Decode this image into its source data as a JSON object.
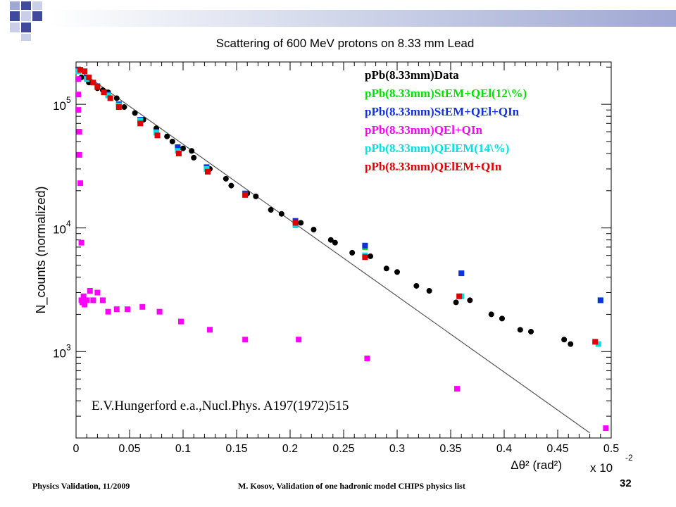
{
  "slide": {
    "footer_left": "Physics Validation, 11/2009",
    "footer_center": "M. Kosov,  Validation of one hadronic model CHIPS physics list",
    "page_number": "32"
  },
  "chart_data": {
    "type": "scatter",
    "title": "Scattering of 600 MeV protons on 8.33 mm Lead",
    "xlabel": "Δθ² (rad²)",
    "x_multiplier": "x 10",
    "x_multiplier_exp": "-2",
    "ylabel": "N_counts (normalized)",
    "xlim": [
      0,
      0.5
    ],
    "ylim": [
      200,
      220000
    ],
    "yscale": "log",
    "x_ticks": [
      "0",
      "0.05",
      "0.1",
      "0.15",
      "0.2",
      "0.25",
      "0.3",
      "0.35",
      "0.4",
      "0.45",
      "0.5"
    ],
    "x_tick_values": [
      0,
      0.05,
      0.1,
      0.15,
      0.2,
      0.25,
      0.3,
      0.35,
      0.4,
      0.45,
      0.5
    ],
    "y_ticks": [
      {
        "value": 1000,
        "base": "10",
        "exp": "3"
      },
      {
        "value": 10000,
        "base": "10",
        "exp": "4"
      },
      {
        "value": 100000,
        "base": "10",
        "exp": "5"
      }
    ],
    "annotation": "E.V.Hungerford e.a.,Nucl.Phys. A197(1972)515",
    "legend_position": "top-right",
    "reference_line": {
      "points": [
        [
          0.002,
          190000
        ],
        [
          0.48,
          220
        ]
      ],
      "color": "#555555"
    },
    "series": [
      {
        "name": "pPb(8.33mm)Data",
        "color": "#000000",
        "marker": "circle",
        "points": [
          [
            0.002,
            160000
          ],
          [
            0.005,
            165000
          ],
          [
            0.012,
            150000
          ],
          [
            0.02,
            135000
          ],
          [
            0.025,
            130000
          ],
          [
            0.03,
            125000
          ],
          [
            0.038,
            112000
          ],
          [
            0.045,
            95000
          ],
          [
            0.055,
            85000
          ],
          [
            0.063,
            75000
          ],
          [
            0.075,
            64000
          ],
          [
            0.085,
            55000
          ],
          [
            0.09,
            50000
          ],
          [
            0.1,
            44000
          ],
          [
            0.108,
            42000
          ],
          [
            0.11,
            37000
          ],
          [
            0.125,
            30000
          ],
          [
            0.14,
            25000
          ],
          [
            0.145,
            22000
          ],
          [
            0.16,
            19000
          ],
          [
            0.168,
            18000
          ],
          [
            0.182,
            14000
          ],
          [
            0.192,
            13000
          ],
          [
            0.21,
            11000
          ],
          [
            0.222,
            9700
          ],
          [
            0.238,
            8000
          ],
          [
            0.242,
            7600
          ],
          [
            0.258,
            6300
          ],
          [
            0.275,
            5900
          ],
          [
            0.29,
            4700
          ],
          [
            0.3,
            4400
          ],
          [
            0.318,
            3400
          ],
          [
            0.33,
            3100
          ],
          [
            0.355,
            2500
          ],
          [
            0.368,
            2600
          ],
          [
            0.388,
            2000
          ],
          [
            0.398,
            1850
          ],
          [
            0.415,
            1500
          ],
          [
            0.425,
            1450
          ],
          [
            0.456,
            1250
          ],
          [
            0.462,
            1150
          ]
        ]
      },
      {
        "name": "pPb(8.33mm)StEM+QEl(12\\%)",
        "color": "#00e000",
        "marker": "square",
        "points": [
          [
            0.002,
            190000
          ],
          [
            0.01,
            165000
          ],
          [
            0.02,
            140000
          ],
          [
            0.03,
            120000
          ],
          [
            0.04,
            100000
          ],
          [
            0.06,
            75000
          ],
          [
            0.075,
            60000
          ],
          [
            0.095,
            45000
          ],
          [
            0.122,
            31000
          ],
          [
            0.158,
            19000
          ],
          [
            0.205,
            11000
          ],
          [
            0.27,
            7000
          ],
          [
            0.36,
            4300
          ],
          [
            0.49,
            2600
          ]
        ]
      },
      {
        "name": "pPb(8.33mm)StEM+QEl+QIn",
        "color": "#1030e0",
        "marker": "square",
        "points": [
          [
            0.002,
            190000
          ],
          [
            0.01,
            165000
          ],
          [
            0.02,
            140000
          ],
          [
            0.03,
            120000
          ],
          [
            0.04,
            100000
          ],
          [
            0.06,
            75000
          ],
          [
            0.075,
            60000
          ],
          [
            0.095,
            45000
          ],
          [
            0.122,
            31000
          ],
          [
            0.158,
            19000
          ],
          [
            0.205,
            11400
          ],
          [
            0.27,
            7200
          ],
          [
            0.36,
            4300
          ],
          [
            0.49,
            2600
          ]
        ]
      },
      {
        "name": "pPb(8.33mm)QEl+QIn",
        "color": "#ff00ff",
        "marker": "square",
        "points": [
          [
            0.002,
            160000
          ],
          [
            0.002,
            120000
          ],
          [
            0.002,
            90000
          ],
          [
            0.003,
            60000
          ],
          [
            0.003,
            39000
          ],
          [
            0.004,
            23000
          ],
          [
            0.005,
            7600
          ],
          [
            0.005,
            2600
          ],
          [
            0.006,
            2500
          ],
          [
            0.007,
            2800
          ],
          [
            0.008,
            2400
          ],
          [
            0.01,
            2600
          ],
          [
            0.013,
            3100
          ],
          [
            0.016,
            2600
          ],
          [
            0.02,
            3000
          ],
          [
            0.025,
            2600
          ],
          [
            0.03,
            2100
          ],
          [
            0.038,
            2200
          ],
          [
            0.048,
            2200
          ],
          [
            0.062,
            2300
          ],
          [
            0.078,
            2100
          ],
          [
            0.098,
            1750
          ],
          [
            0.125,
            1500
          ],
          [
            0.158,
            1250
          ],
          [
            0.208,
            1250
          ],
          [
            0.272,
            880
          ],
          [
            0.356,
            500
          ],
          [
            0.495,
            240
          ]
        ]
      },
      {
        "name": "pPb(8.33mm)QElEM(14\\%)",
        "color": "#00e0e0",
        "marker": "square",
        "points": [
          [
            0.002,
            185000
          ],
          [
            0.01,
            160000
          ],
          [
            0.02,
            138000
          ],
          [
            0.03,
            118000
          ],
          [
            0.04,
            98000
          ],
          [
            0.06,
            74000
          ],
          [
            0.075,
            59000
          ],
          [
            0.095,
            42000
          ],
          [
            0.122,
            30000
          ],
          [
            0.158,
            18500
          ],
          [
            0.205,
            10500
          ],
          [
            0.27,
            6000
          ],
          [
            0.36,
            2800
          ],
          [
            0.488,
            1150
          ]
        ]
      },
      {
        "name": "pPb(8.33mm)QElEM+QIn",
        "color": "#e00000",
        "marker": "square",
        "points": [
          [
            0.004,
            190000
          ],
          [
            0.008,
            185000
          ],
          [
            0.012,
            165000
          ],
          [
            0.016,
            150000
          ],
          [
            0.02,
            138000
          ],
          [
            0.026,
            125000
          ],
          [
            0.032,
            112000
          ],
          [
            0.04,
            95000
          ],
          [
            0.06,
            70000
          ],
          [
            0.076,
            56000
          ],
          [
            0.096,
            40000
          ],
          [
            0.123,
            28500
          ],
          [
            0.158,
            18500
          ],
          [
            0.205,
            11000
          ],
          [
            0.27,
            5800
          ],
          [
            0.358,
            2800
          ],
          [
            0.485,
            1200
          ]
        ]
      }
    ]
  }
}
